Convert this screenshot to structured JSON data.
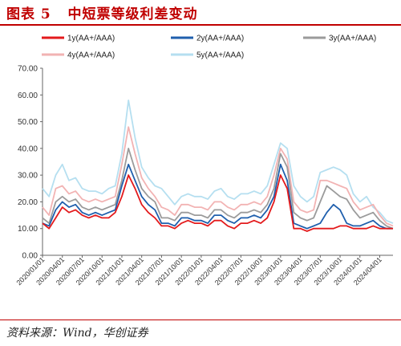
{
  "header": {
    "title": "图表 5   中短票等级利差变动"
  },
  "footer": {
    "source": "资料来源：Wind，华创证券"
  },
  "colors": {
    "accent": "#c00000"
  },
  "chart_data": {
    "type": "line",
    "title": "",
    "xlabel": "",
    "ylabel": "",
    "ylim": [
      0,
      70
    ],
    "yticks": [
      "0.00",
      "10.00",
      "20.00",
      "30.00",
      "40.00",
      "50.00",
      "60.00",
      "70.00"
    ],
    "xticks": [
      "2020/01/01",
      "2020/04/01",
      "2020/07/01",
      "2020/10/01",
      "2021/01/01",
      "2021/04/01",
      "2021/07/01",
      "2021/10/01",
      "2022/01/01",
      "2022/04/01",
      "2022/07/01",
      "2022/10/01",
      "2023/01/01",
      "2023/04/01",
      "2023/07/01",
      "2023/10/01",
      "2024/01/01",
      "2024/04/01"
    ],
    "legend_position": "top",
    "grid": false,
    "x": [
      "2020/01",
      "2020/02",
      "2020/03",
      "2020/04",
      "2020/05",
      "2020/06",
      "2020/07",
      "2020/08",
      "2020/09",
      "2020/10",
      "2020/11",
      "2020/12",
      "2021/01",
      "2021/02",
      "2021/03",
      "2021/04",
      "2021/05",
      "2021/06",
      "2021/07",
      "2021/08",
      "2021/09",
      "2021/10",
      "2021/11",
      "2021/12",
      "2022/01",
      "2022/02",
      "2022/03",
      "2022/04",
      "2022/05",
      "2022/06",
      "2022/07",
      "2022/08",
      "2022/09",
      "2022/10",
      "2022/11",
      "2022/12",
      "2023/01",
      "2023/02",
      "2023/03",
      "2023/04",
      "2023/05",
      "2023/06",
      "2023/07",
      "2023/08",
      "2023/09",
      "2023/10",
      "2023/11",
      "2023/12",
      "2024/01",
      "2024/02",
      "2024/03",
      "2024/04",
      "2024/05",
      "2024/06"
    ],
    "series": [
      {
        "name": "1y(AA+/AAA)",
        "color": "#e31a1c",
        "values": [
          12,
          10,
          14,
          18,
          16,
          17,
          15,
          14,
          15,
          14,
          14,
          16,
          22,
          30,
          25,
          19,
          16,
          14,
          11,
          11,
          10,
          12,
          13,
          12,
          12,
          11,
          13,
          13,
          11,
          10,
          12,
          12,
          13,
          12,
          14,
          20,
          30,
          25,
          10,
          10,
          9,
          10,
          10,
          10,
          10,
          11,
          11,
          10,
          10,
          10,
          11,
          10,
          10,
          10
        ]
      },
      {
        "name": "2y(AA+/AAA)",
        "color": "#1f5fad",
        "values": [
          12,
          11,
          17,
          20,
          18,
          19,
          16,
          15,
          16,
          15,
          16,
          17,
          26,
          34,
          28,
          22,
          19,
          17,
          12,
          12,
          11,
          14,
          14,
          13,
          13,
          12,
          15,
          15,
          13,
          12,
          14,
          14,
          15,
          14,
          17,
          22,
          34,
          28,
          12,
          11,
          10,
          11,
          12,
          16,
          19,
          17,
          12,
          11,
          11,
          12,
          13,
          11,
          10,
          10
        ]
      },
      {
        "name": "3y(AA+/AAA)",
        "color": "#9b9b9b",
        "values": [
          14,
          12,
          20,
          22,
          20,
          21,
          18,
          17,
          18,
          17,
          18,
          19,
          28,
          40,
          32,
          25,
          22,
          20,
          14,
          14,
          13,
          16,
          16,
          15,
          15,
          14,
          17,
          17,
          15,
          14,
          16,
          16,
          17,
          16,
          19,
          25,
          38,
          33,
          16,
          14,
          13,
          14,
          20,
          26,
          24,
          22,
          21,
          17,
          14,
          15,
          16,
          13,
          11,
          10
        ]
      },
      {
        "name": "4y(AA+/AAA)",
        "color": "#f2b3b3",
        "values": [
          18,
          15,
          25,
          26,
          23,
          24,
          21,
          20,
          21,
          20,
          21,
          22,
          34,
          48,
          38,
          29,
          25,
          22,
          18,
          17,
          15,
          19,
          19,
          18,
          18,
          17,
          20,
          20,
          18,
          17,
          19,
          19,
          20,
          19,
          22,
          30,
          40,
          36,
          20,
          17,
          16,
          17,
          28,
          28,
          27,
          26,
          25,
          20,
          17,
          18,
          19,
          15,
          12,
          11
        ]
      },
      {
        "name": "5y(AA+/AAA)",
        "color": "#b5dff0",
        "values": [
          25,
          22,
          30,
          34,
          28,
          29,
          25,
          24,
          24,
          23,
          25,
          26,
          38,
          58,
          44,
          33,
          29,
          26,
          25,
          22,
          19,
          22,
          23,
          22,
          22,
          21,
          24,
          25,
          22,
          21,
          23,
          23,
          24,
          23,
          26,
          34,
          42,
          40,
          26,
          22,
          20,
          22,
          31,
          32,
          33,
          32,
          30,
          23,
          20,
          22,
          18,
          16,
          13,
          12
        ]
      }
    ]
  }
}
